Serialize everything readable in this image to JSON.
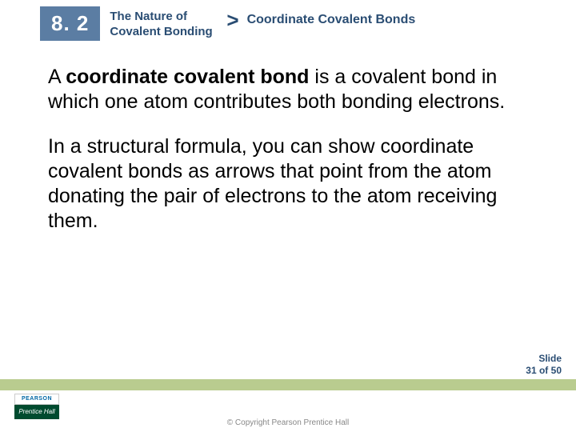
{
  "header": {
    "section_number": "8. 2",
    "chapter_title_line1": "The Nature of",
    "chapter_title_line2": "Covalent Bonding",
    "arrow": ">",
    "topic_title": "Coordinate Covalent Bonds"
  },
  "body": {
    "p1_pre": " A ",
    "p1_bold": "coordinate covalent bond",
    "p1_post": " is a covalent bond in which one atom contributes both bonding electrons.",
    "p2": " In a structural formula, you can show coordinate covalent bonds as arrows that point from the atom donating the pair of electrons to the atom receiving them."
  },
  "footer": {
    "slide_label": "Slide",
    "slide_count": "31 of 50",
    "logo_top": "PEARSON",
    "logo_bottom": "Prentice Hall",
    "copyright": "© Copyright Pearson Prentice Hall"
  },
  "colors": {
    "section_box_bg": "#5b7da3",
    "heading_text": "#2a4d73",
    "footer_bar": "#b9cc8f",
    "logo_green": "#004b2f"
  }
}
